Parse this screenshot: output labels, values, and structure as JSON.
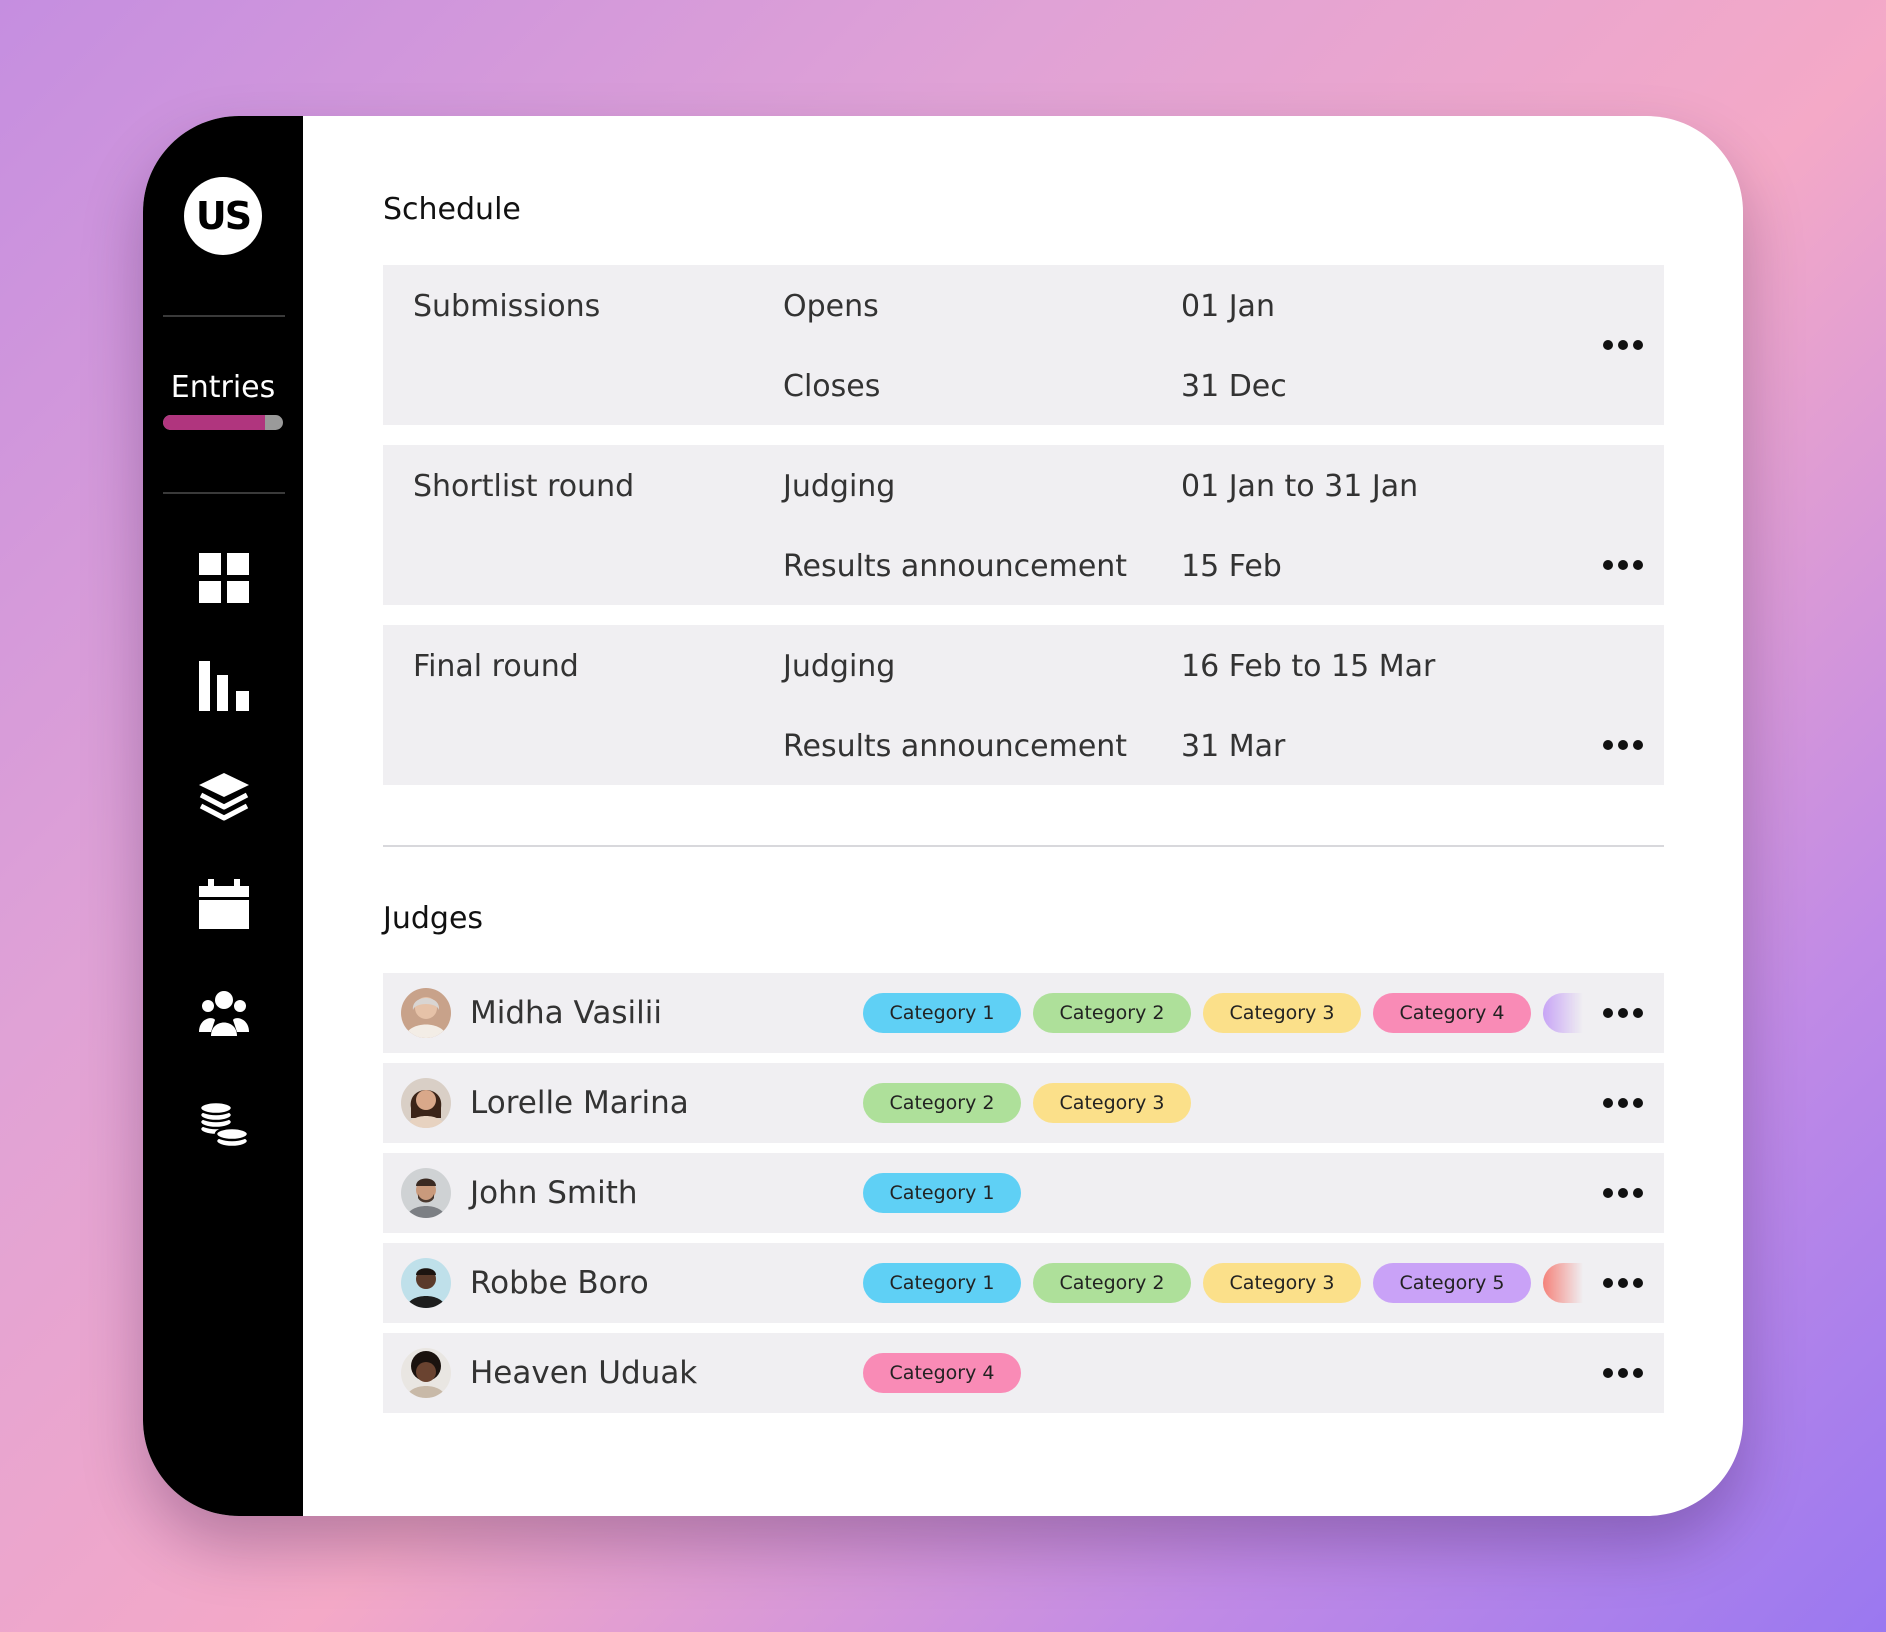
{
  "sidebar": {
    "logo_text": "US",
    "nav_label": "Entries",
    "progress_fraction": 0.85,
    "icons": [
      "grid-icon",
      "bar-chart-icon",
      "layers-icon",
      "calendar-icon",
      "users-icon",
      "coins-icon"
    ]
  },
  "schedule": {
    "title": "Schedule",
    "blocks": [
      {
        "name": "Submissions",
        "rows": [
          {
            "label": "Opens",
            "value": "01 Jan"
          },
          {
            "label": "Closes",
            "value": "31 Dec"
          }
        ]
      },
      {
        "name": "Shortlist round",
        "rows": [
          {
            "label": "Judging",
            "value": "01 Jan to 31 Jan"
          },
          {
            "label": "Results announcement",
            "value": "15 Feb"
          }
        ]
      },
      {
        "name": "Final round",
        "rows": [
          {
            "label": "Judging",
            "value": "16 Feb to 15 Mar"
          },
          {
            "label": "Results announcement",
            "value": "31 Mar"
          }
        ]
      }
    ]
  },
  "judges": {
    "title": "Judges",
    "list": [
      {
        "name": "Midha Vasilii",
        "categories": [
          "Category 1",
          "Category 2",
          "Category 3",
          "Category 4"
        ],
        "overflow_color": "#c7a4f5"
      },
      {
        "name": "Lorelle Marina",
        "categories": [
          "Category 2",
          "Category 3"
        ]
      },
      {
        "name": "John Smith",
        "categories": [
          "Category 1"
        ]
      },
      {
        "name": "Robbe Boro",
        "categories": [
          "Category 1",
          "Category 2",
          "Category 3",
          "Category 5"
        ],
        "overflow_color": "#f4827a"
      },
      {
        "name": "Heaven Uduak",
        "categories": [
          "Category 4"
        ]
      }
    ]
  },
  "category_colors": {
    "Category 1": "#5fd0f5",
    "Category 2": "#aee09a",
    "Category 3": "#fbe08a",
    "Category 4": "#f98bb6",
    "Category 5": "#c9a2f7"
  },
  "colors": {
    "sidebar_bg": "#000000",
    "progress_fill": "#b0357e",
    "row_bg": "#f0eff2"
  }
}
